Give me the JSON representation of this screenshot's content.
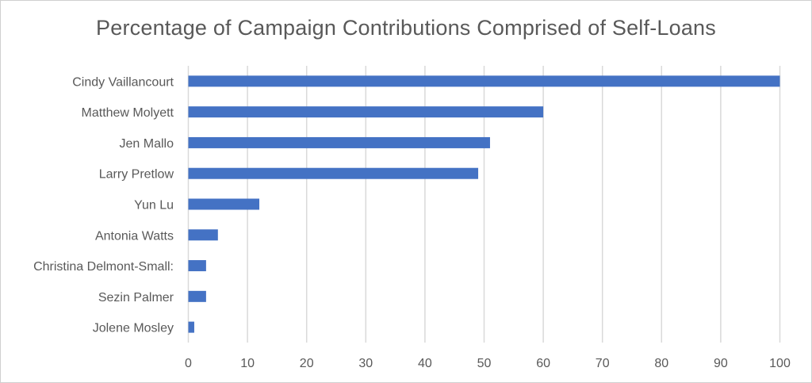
{
  "chart_data": {
    "type": "bar",
    "orientation": "horizontal",
    "title": "Percentage of Campaign Contributions Comprised of Self-Loans",
    "xlabel": "",
    "ylabel": "",
    "categories": [
      "Cindy Vaillancourt",
      "Matthew Molyett",
      "Jen Mallo",
      "Larry Pretlow",
      "Yun Lu",
      "Antonia Watts",
      "Christina Delmont-Small:",
      "Sezin Palmer",
      "Jolene Mosley"
    ],
    "values": [
      100,
      60,
      51,
      49,
      12,
      5,
      3,
      3,
      1
    ],
    "xlim": [
      0,
      100
    ],
    "xticks": [
      0,
      10,
      20,
      30,
      40,
      50,
      60,
      70,
      80,
      90,
      100
    ],
    "grid": true,
    "legend": "none",
    "bar_color": "#4472c4",
    "grid_color": "#d9d9d9"
  }
}
